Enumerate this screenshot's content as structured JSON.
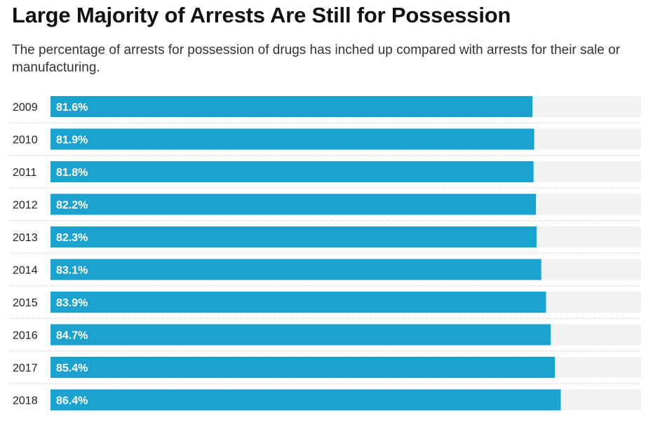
{
  "title": "Large Majority of Arrests Are Still for Possession",
  "subtitle": "The percentage of arrests for possession of drugs has inched up compared with arrests for their sale or manufacturing.",
  "colors": {
    "bar": "#1ba2cf",
    "track": "#f2f2f2",
    "separator": "#c8c8c8"
  },
  "chart_data": {
    "type": "bar",
    "orientation": "horizontal",
    "categories": [
      "2009",
      "2010",
      "2011",
      "2012",
      "2013",
      "2014",
      "2015",
      "2016",
      "2017",
      "2018"
    ],
    "values": [
      81.6,
      81.9,
      81.8,
      82.2,
      82.3,
      83.1,
      83.9,
      84.7,
      85.4,
      86.4
    ],
    "value_labels": [
      "81.6%",
      "81.9%",
      "81.8%",
      "82.2%",
      "82.3%",
      "83.1%",
      "83.9%",
      "84.7%",
      "85.4%",
      "86.4%"
    ],
    "xlim": [
      0,
      100
    ],
    "grid": false
  }
}
